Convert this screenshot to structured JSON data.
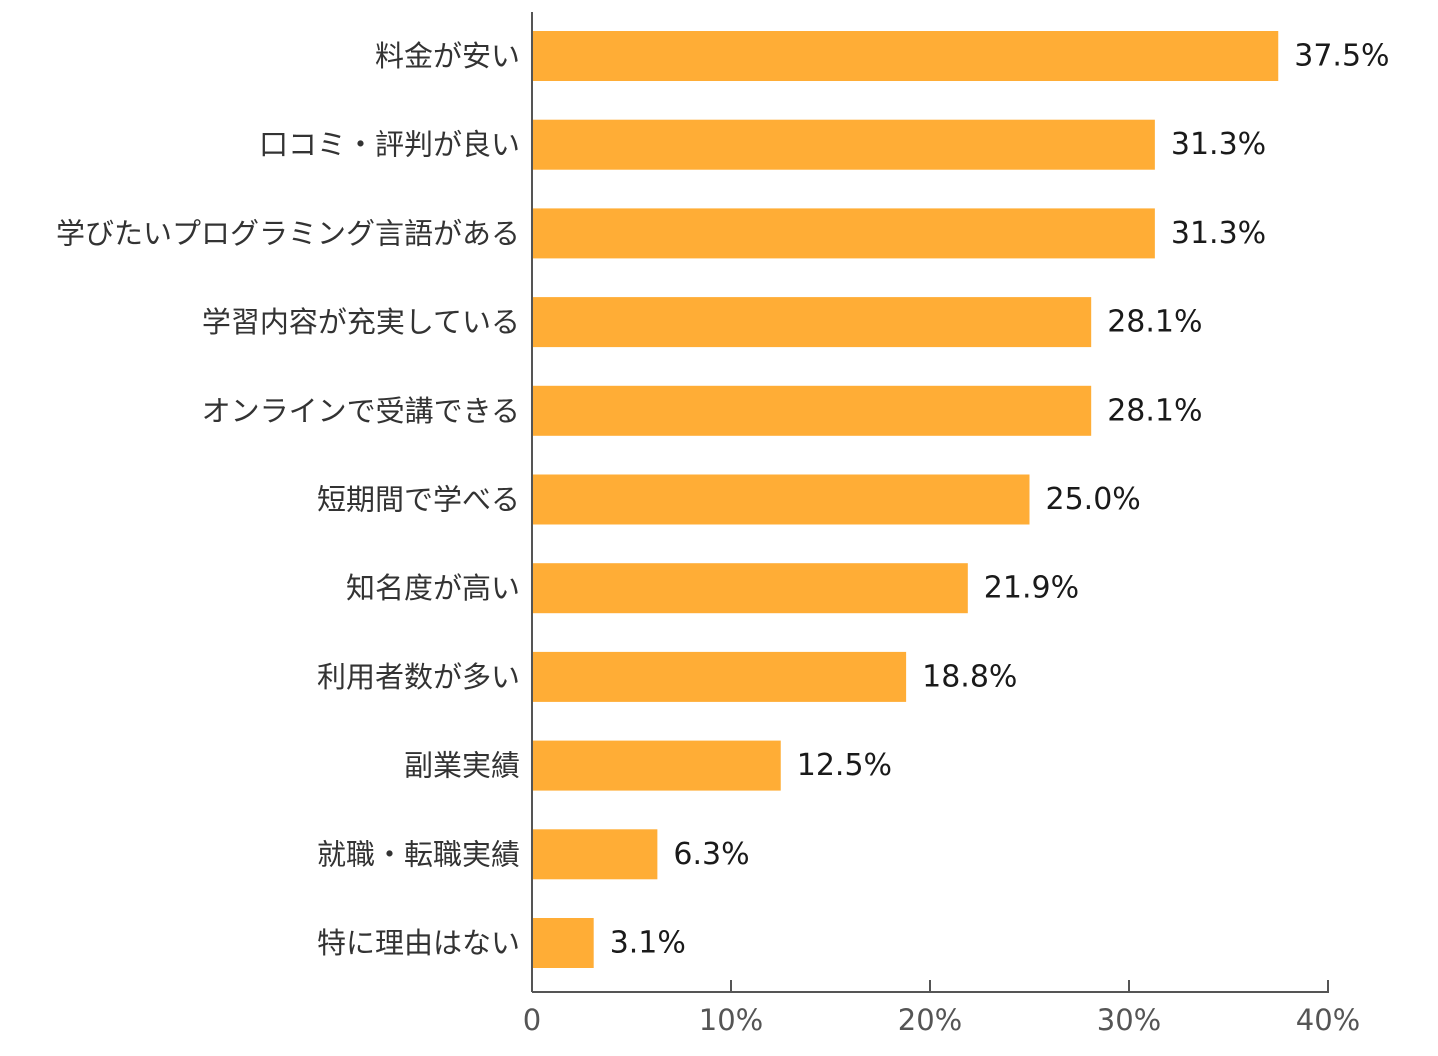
{
  "chart_data": {
    "type": "bar",
    "orientation": "horizontal",
    "categories": [
      "料金が安い",
      "口コミ・評判が良い",
      "学びたいプログラミング言語がある",
      "学習内容が充実している",
      "オンラインで受講できる",
      "短期間で学べる",
      "知名度が高い",
      "利用者数が多い",
      "副業実績",
      "就職・転職実績",
      "特に理由はない"
    ],
    "values": [
      37.5,
      31.3,
      31.3,
      28.1,
      28.1,
      25.0,
      21.9,
      18.8,
      12.5,
      6.3,
      3.1
    ],
    "value_labels": [
      "37.5%",
      "31.3%",
      "31.3%",
      "28.1%",
      "28.1%",
      "25.0%",
      "21.9%",
      "18.8%",
      "12.5%",
      "6.3%",
      "3.1%"
    ],
    "xlim": [
      0,
      40
    ],
    "xticks": [
      0,
      10,
      20,
      30,
      40
    ],
    "xtick_labels": [
      "0",
      "10%",
      "20%",
      "30%",
      "40%"
    ],
    "title": "",
    "xlabel": "",
    "ylabel": "",
    "grid": false,
    "legend": "none",
    "bar_color": "#FFAD36",
    "axis_color": "#555555"
  }
}
